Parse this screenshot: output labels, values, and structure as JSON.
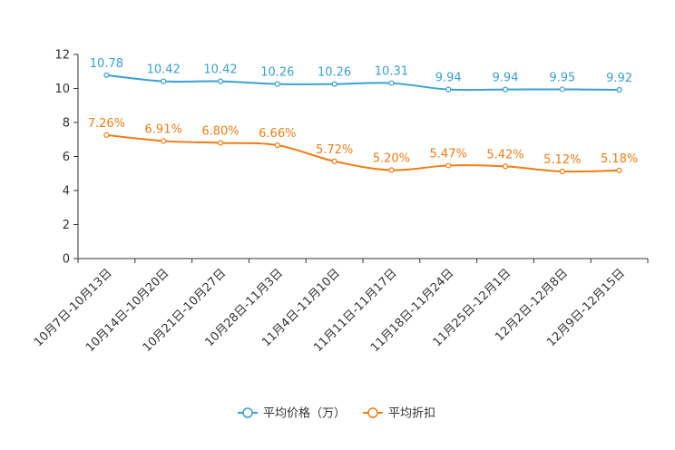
{
  "chart_data": {
    "type": "line",
    "categories": [
      "10月7日-10月13日",
      "10月14日-10月20日",
      "10月21日-10月27日",
      "10月28日-11月3日",
      "11月4日-11月10日",
      "11月11日-11月17日",
      "11月18日-11月24日",
      "11月25日-12月1日",
      "12月2日-12月8日",
      "12月9日-12月15日"
    ],
    "ylim": [
      0,
      12
    ],
    "yticks": [
      0,
      2,
      4,
      6,
      8,
      10,
      12
    ],
    "series": [
      {
        "name": "平均价格（万）",
        "color": "#3aa0cf",
        "values": [
          10.78,
          10.42,
          10.42,
          10.26,
          10.26,
          10.31,
          9.94,
          9.94,
          9.95,
          9.92
        ],
        "labels": [
          "10.78",
          "10.42",
          "10.42",
          "10.26",
          "10.26",
          "10.31",
          "9.94",
          "9.94",
          "9.95",
          "9.92"
        ]
      },
      {
        "name": "平均折扣",
        "color": "#f07d16",
        "values": [
          7.26,
          6.91,
          6.8,
          6.66,
          5.72,
          5.2,
          5.47,
          5.42,
          5.12,
          5.18
        ],
        "labels": [
          "7.26%",
          "6.91%",
          "6.80%",
          "6.66%",
          "5.72%",
          "5.20%",
          "5.47%",
          "5.42%",
          "5.12%",
          "5.18%"
        ]
      }
    ],
    "title": "",
    "xlabel": "",
    "ylabel": "",
    "legend_position": "bottom-center"
  }
}
